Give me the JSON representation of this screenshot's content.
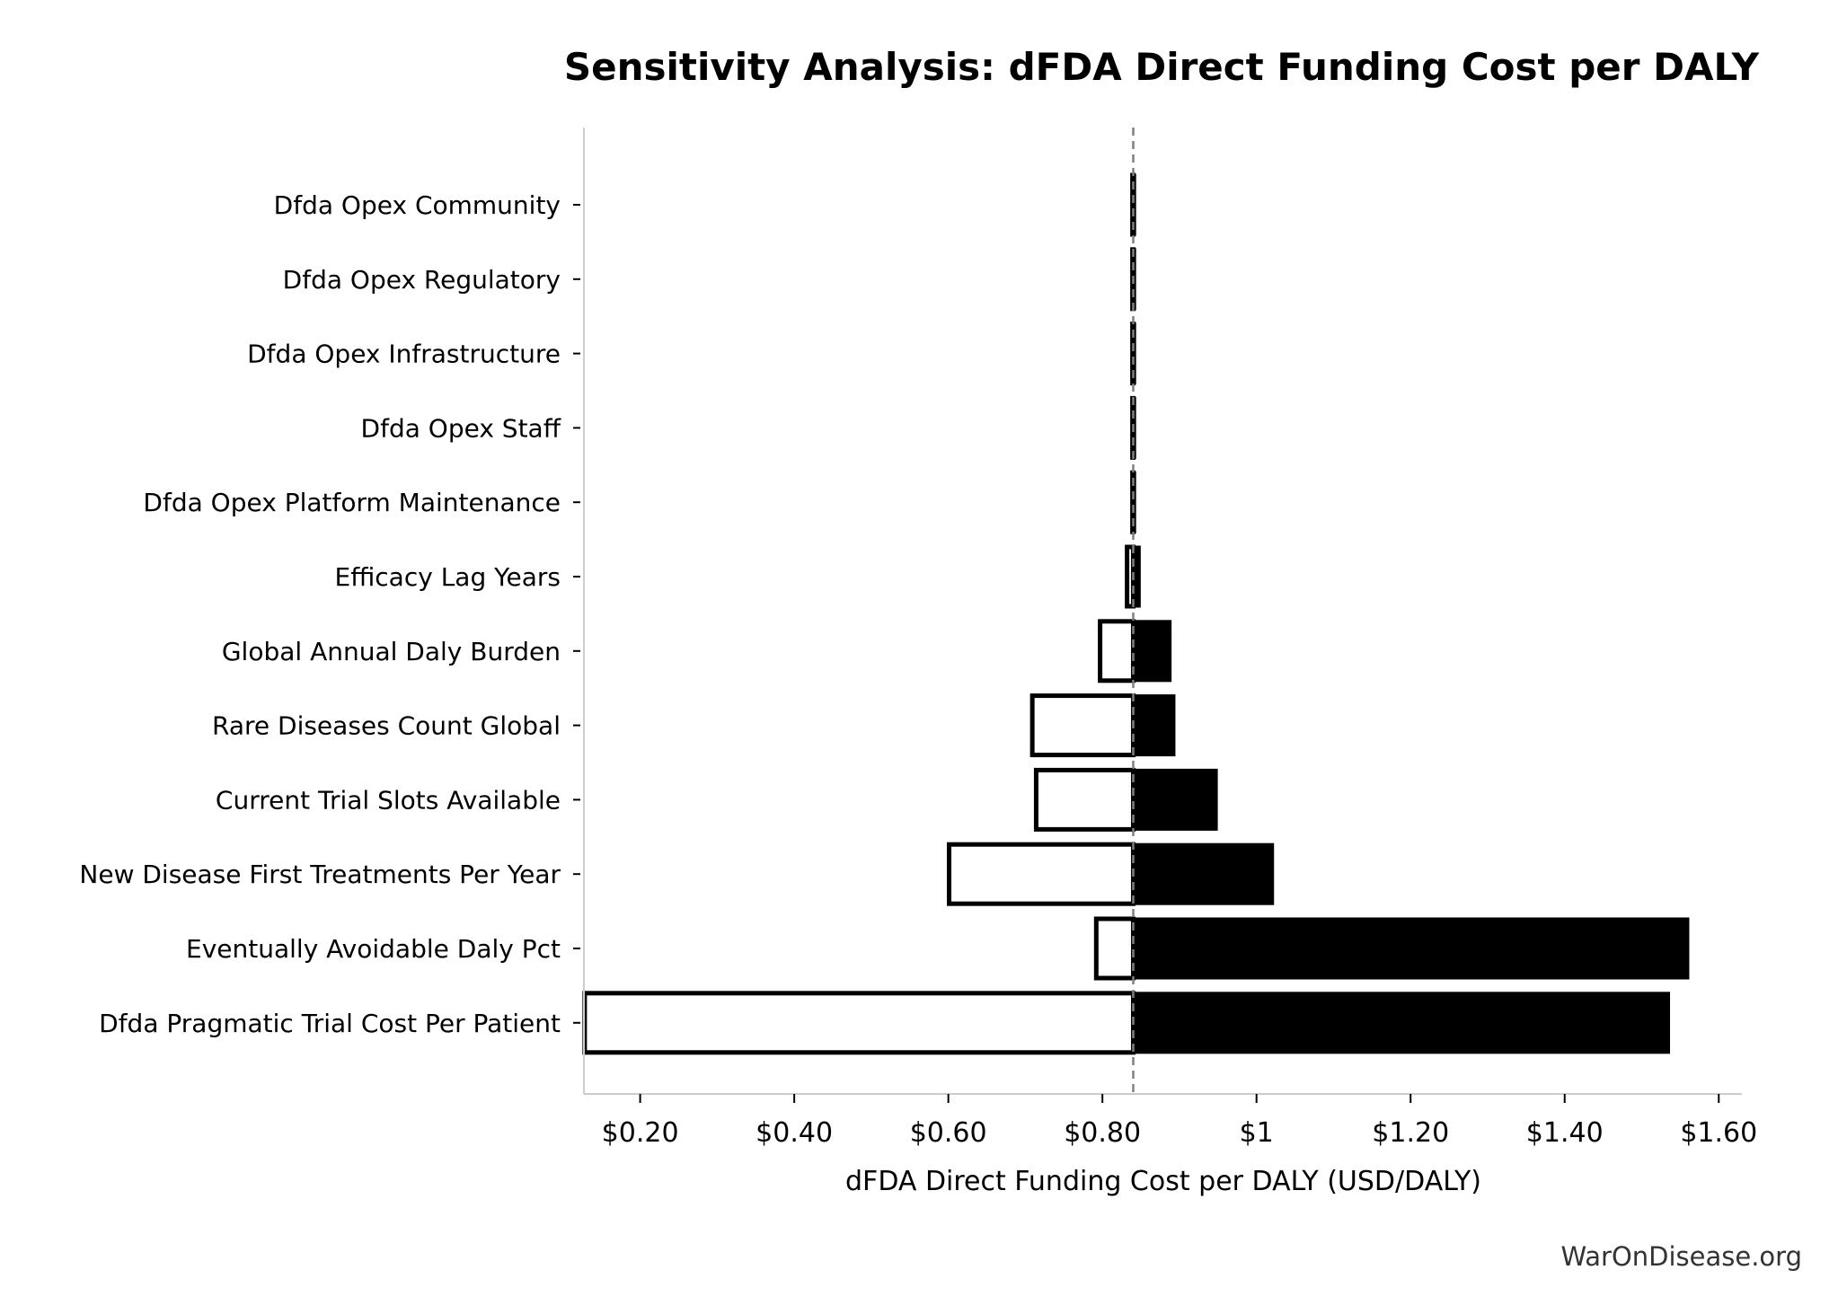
{
  "chart_data": {
    "type": "bar",
    "subtype": "tornado",
    "title": "Sensitivity Analysis: dFDA Direct Funding Cost per DALY",
    "xlabel": "dFDA Direct Funding Cost per DALY (USD/DALY)",
    "ylabel": "",
    "xlim": [
      0.127,
      1.63
    ],
    "baseline": 0.84,
    "xticks": [
      {
        "value": 0.2,
        "label": "$0.20"
      },
      {
        "value": 0.4,
        "label": "$0.40"
      },
      {
        "value": 0.6,
        "label": "$0.60"
      },
      {
        "value": 0.8,
        "label": "$0.80"
      },
      {
        "value": 1.0,
        "label": "$1"
      },
      {
        "value": 1.2,
        "label": "$1.20"
      },
      {
        "value": 1.4,
        "label": "$1.40"
      },
      {
        "value": 1.6,
        "label": "$1.60"
      }
    ],
    "categories": [
      "Dfda Opex Community",
      "Dfda Opex Regulatory",
      "Dfda Opex Infrastructure",
      "Dfda Opex Staff",
      "Dfda Opex Platform Maintenance",
      "Efficacy Lag Years",
      "Global Annual Daly Burden",
      "Rare Diseases Count Global",
      "Current Trial Slots Available",
      "New Disease First Treatments Per Year",
      "Eventually Avoidable Daly Pct",
      "Dfda Pragmatic Trial Cost Per Patient"
    ],
    "series": [
      {
        "fill": "none",
        "values": [
          0.839,
          0.839,
          0.839,
          0.839,
          0.839,
          0.832,
          0.797,
          0.709,
          0.714,
          0.601,
          0.792,
          0.128
        ]
      },
      {
        "fill": "solid",
        "values": [
          0.842,
          0.842,
          0.842,
          0.842,
          0.842,
          0.848,
          0.888,
          0.893,
          0.948,
          1.021,
          1.56,
          1.535
        ]
      }
    ],
    "grid": false,
    "legend": "none",
    "colors": {
      "bar_fill": "#000000",
      "bar_outline": "#000000",
      "baseline": "#808080",
      "axis": "#cccccc"
    }
  },
  "watermark": "WarOnDisease.org"
}
